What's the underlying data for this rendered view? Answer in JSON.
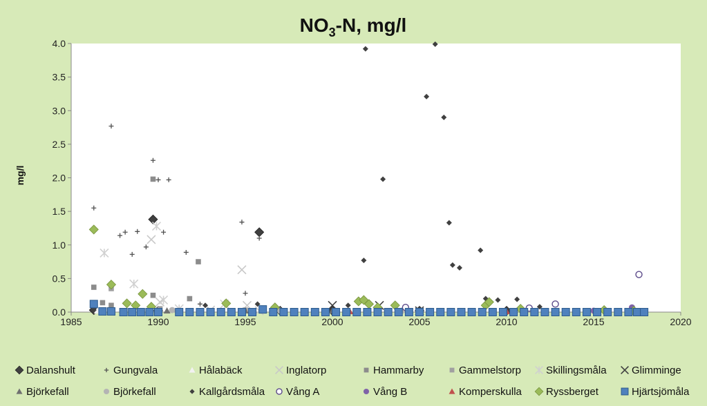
{
  "chart_data": {
    "type": "scatter",
    "title": {
      "main": "NO",
      "sub": "3",
      "rest": "-N, mg/l"
    },
    "xlabel": "",
    "ylabel": "mg/l",
    "xlim": [
      1985,
      2020
    ],
    "ylim": [
      0,
      4.0
    ],
    "xticks": [
      "1985",
      "1990",
      "1995",
      "2000",
      "2005",
      "2010",
      "2015",
      "2020"
    ],
    "yticks": [
      "0.0",
      "0.5",
      "1.0",
      "1.5",
      "2.0",
      "2.5",
      "3.0",
      "3.5",
      "4.0"
    ],
    "grid": false,
    "legend_position": "bottom",
    "series": [
      {
        "name": "Dalanshult",
        "marker": "diamond-large",
        "color": "#404040",
        "points": [
          [
            1986.3,
            0.03
          ],
          [
            1989.7,
            1.38
          ],
          [
            1990.0,
            0.02
          ],
          [
            1995.8,
            1.19
          ],
          [
            1997.0,
            0.02
          ],
          [
            2000.0,
            0.02
          ],
          [
            2005.0,
            0.02
          ],
          [
            2010.0,
            0.02
          ]
        ]
      },
      {
        "name": "Gungvala",
        "marker": "plus",
        "color": "#505050",
        "points": [
          [
            1986.3,
            1.55
          ],
          [
            1987.3,
            2.77
          ],
          [
            1987.8,
            1.14
          ],
          [
            1988.1,
            1.19
          ],
          [
            1988.5,
            0.86
          ],
          [
            1988.8,
            1.2
          ],
          [
            1989.3,
            0.97
          ],
          [
            1989.7,
            2.26
          ],
          [
            1990.0,
            1.97
          ],
          [
            1990.3,
            1.19
          ],
          [
            1990.6,
            1.97
          ],
          [
            1991.6,
            0.89
          ],
          [
            1994.8,
            1.34
          ],
          [
            1995.0,
            0.28
          ],
          [
            1995.8,
            1.1
          ],
          [
            1992.4,
            0.12
          ]
        ]
      },
      {
        "name": "Hålabäck",
        "marker": "triangle",
        "color": "#f2f2f2",
        "points": [
          [
            1986.5,
            0.02
          ],
          [
            1990.0,
            0.02
          ],
          [
            1995.0,
            0.02
          ]
        ]
      },
      {
        "name": "Inglatorp",
        "marker": "x-large",
        "color": "#c8c8c8",
        "points": [
          [
            1989.6,
            1.08
          ],
          [
            1990.1,
            0.15
          ],
          [
            1993.0,
            0.03
          ],
          [
            1994.8,
            0.63
          ],
          [
            1995.1,
            0.1
          ],
          [
            1995.8,
            0.02
          ]
        ]
      },
      {
        "name": "Hammarby",
        "marker": "square-small",
        "color": "#8c8c8c",
        "points": [
          [
            1986.3,
            0.37
          ],
          [
            1986.8,
            0.14
          ],
          [
            1987.3,
            0.1
          ],
          [
            1989.7,
            1.98
          ],
          [
            1991.8,
            0.2
          ],
          [
            1992.3,
            0.75
          ],
          [
            1989.7,
            0.25
          ]
        ]
      },
      {
        "name": "Gammelstorp",
        "marker": "square-small",
        "color": "#a0a0a0",
        "points": [
          [
            1987.3,
            0.35
          ],
          [
            1990.1,
            0.05
          ],
          [
            1995.0,
            0.03
          ]
        ]
      },
      {
        "name": "Skillingsmåla",
        "marker": "asterisk",
        "color": "#d0d0d0",
        "points": [
          [
            1986.9,
            0.88
          ],
          [
            1988.6,
            0.42
          ],
          [
            1989.9,
            1.28
          ],
          [
            1990.3,
            0.18
          ],
          [
            1991.2,
            0.05
          ],
          [
            1993.8,
            0.12
          ]
        ]
      },
      {
        "name": "Glimminge",
        "marker": "x-large",
        "color": "#404040",
        "points": [
          [
            2000.0,
            0.1
          ],
          [
            2002.7,
            0.1
          ],
          [
            2005.0,
            0.02
          ]
        ]
      },
      {
        "name": "Björkefall",
        "marker": "triangle",
        "color": "#707070",
        "points": [
          [
            1990.5,
            0.02
          ],
          [
            1995.0,
            0.02
          ],
          [
            2000.0,
            0.02
          ]
        ]
      },
      {
        "name": "Björkefall",
        "marker": "circle-filled",
        "color": "#b4b4b4",
        "points": [
          [
            1990.8,
            0.03
          ],
          [
            1997.0,
            0.02
          ],
          [
            2004.0,
            0.02
          ]
        ]
      },
      {
        "name": "Kallgårdsmåla",
        "marker": "diamond-small",
        "color": "#404040",
        "points": [
          [
            2001.8,
            0.77
          ],
          [
            2001.9,
            3.92
          ],
          [
            2002.9,
            1.98
          ],
          [
            2005.4,
            3.21
          ],
          [
            2005.9,
            3.99
          ],
          [
            2006.4,
            2.9
          ],
          [
            2006.7,
            1.33
          ],
          [
            2006.9,
            0.7
          ],
          [
            2007.3,
            0.66
          ],
          [
            2008.5,
            0.92
          ],
          [
            2008.8,
            0.2
          ],
          [
            2009.5,
            0.18
          ],
          [
            2010.6,
            0.19
          ],
          [
            2011.9,
            0.08
          ],
          [
            2000.9,
            0.1
          ],
          [
            1995.7,
            0.12
          ],
          [
            1992.7,
            0.1
          ],
          [
            1986.3,
            0.03
          ]
        ]
      },
      {
        "name": "Vång A",
        "marker": "circle-open",
        "color": "#5c4a8a",
        "points": [
          [
            2004.2,
            0.07
          ],
          [
            2011.3,
            0.06
          ],
          [
            2012.8,
            0.12
          ],
          [
            2017.6,
            0.56
          ]
        ]
      },
      {
        "name": "Vång B",
        "marker": "circle-filled",
        "color": "#7f63a8",
        "points": [
          [
            2017.2,
            0.07
          ],
          [
            2015.0,
            0.02
          ]
        ]
      },
      {
        "name": "Komperskulla",
        "marker": "triangle",
        "color": "#c0504d",
        "points": [
          [
            2001.0,
            0.01
          ],
          [
            2010.0,
            0.01
          ],
          [
            2017.0,
            0.01
          ]
        ]
      },
      {
        "name": "Ryssberget",
        "marker": "diamond-large",
        "color": "#9bbb59",
        "points": [
          [
            1986.3,
            1.23
          ],
          [
            1987.3,
            0.41
          ],
          [
            1988.2,
            0.13
          ],
          [
            1988.7,
            0.1
          ],
          [
            1989.1,
            0.27
          ],
          [
            1989.6,
            0.08
          ],
          [
            1993.9,
            0.13
          ],
          [
            1996.7,
            0.07
          ],
          [
            2001.5,
            0.16
          ],
          [
            2001.8,
            0.18
          ],
          [
            2002.1,
            0.12
          ],
          [
            2002.6,
            0.07
          ],
          [
            2003.6,
            0.1
          ],
          [
            2008.8,
            0.1
          ],
          [
            2009.0,
            0.15
          ],
          [
            2010.8,
            0.05
          ],
          [
            2015.6,
            0.03
          ],
          [
            2017.3,
            0.02
          ]
        ]
      },
      {
        "name": "Hjärtsjömåla",
        "marker": "square-blue",
        "color": "#4f81bd",
        "points": [
          [
            1986.3,
            0.12
          ],
          [
            1986.8,
            0.01
          ],
          [
            1987.3,
            0.01
          ],
          [
            1988.0,
            0.0
          ],
          [
            1988.5,
            0.0
          ],
          [
            1989.0,
            0.0
          ],
          [
            1989.5,
            0.0
          ],
          [
            1990.0,
            0.0
          ],
          [
            1991.2,
            0.0
          ],
          [
            1991.8,
            0.0
          ],
          [
            1992.4,
            0.0
          ],
          [
            1993.0,
            0.0
          ],
          [
            1993.6,
            0.0
          ],
          [
            1994.2,
            0.0
          ],
          [
            1994.8,
            0.0
          ],
          [
            1995.4,
            0.0
          ],
          [
            1996.0,
            0.04
          ],
          [
            1996.6,
            0.0
          ],
          [
            1997.2,
            0.0
          ],
          [
            1997.8,
            0.0
          ],
          [
            1998.4,
            0.0
          ],
          [
            1999.0,
            0.0
          ],
          [
            1999.6,
            0.0
          ],
          [
            2000.2,
            0.0
          ],
          [
            2000.8,
            0.0
          ],
          [
            2001.4,
            0.0
          ],
          [
            2002.0,
            0.0
          ],
          [
            2002.6,
            0.0
          ],
          [
            2003.2,
            0.0
          ],
          [
            2003.8,
            0.0
          ],
          [
            2004.4,
            0.0
          ],
          [
            2005.0,
            0.0
          ],
          [
            2005.6,
            0.0
          ],
          [
            2006.2,
            0.0
          ],
          [
            2006.8,
            0.0
          ],
          [
            2007.4,
            0.0
          ],
          [
            2008.0,
            0.0
          ],
          [
            2008.6,
            0.0
          ],
          [
            2009.2,
            0.0
          ],
          [
            2009.8,
            0.0
          ],
          [
            2010.4,
            0.0
          ],
          [
            2011.0,
            0.0
          ],
          [
            2011.6,
            0.0
          ],
          [
            2012.2,
            0.0
          ],
          [
            2012.8,
            0.0
          ],
          [
            2013.4,
            0.0
          ],
          [
            2014.0,
            0.0
          ],
          [
            2014.6,
            0.0
          ],
          [
            2015.2,
            0.0
          ],
          [
            2015.8,
            0.0
          ],
          [
            2016.4,
            0.0
          ],
          [
            2017.0,
            0.0
          ],
          [
            2017.5,
            0.0
          ],
          [
            2017.9,
            0.0
          ]
        ]
      }
    ]
  }
}
